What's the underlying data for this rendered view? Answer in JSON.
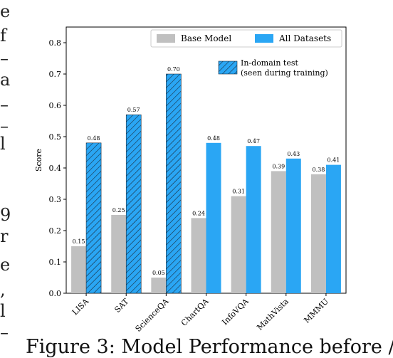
{
  "chart_data": {
    "type": "bar",
    "title": "",
    "xlabel": "",
    "ylabel": "Score",
    "ylim": [
      0,
      0.85
    ],
    "yticks": [
      "0.0",
      "0.1",
      "0.2",
      "0.3",
      "0.4",
      "0.5",
      "0.6",
      "0.7",
      "0.8"
    ],
    "categories": [
      "LISA",
      "SAT",
      "ScienceQA",
      "ChartQA",
      "InfoVQA",
      "MathVista",
      "MMMU"
    ],
    "series": [
      {
        "name": "Base Model",
        "color": "#c0c0c0",
        "values": [
          0.15,
          0.25,
          0.05,
          0.24,
          0.31,
          0.39,
          0.38
        ],
        "labels": [
          "0.15",
          "0.25",
          "0.05",
          "0.24",
          "0.31",
          "0.39",
          "0.38"
        ]
      },
      {
        "name": "All Datasets",
        "color": "#2aa6f4",
        "values": [
          0.48,
          0.57,
          0.7,
          0.48,
          0.47,
          0.43,
          0.41
        ],
        "labels": [
          "0.48",
          "0.57",
          "0.70",
          "0.48",
          "0.47",
          "0.43",
          "0.41"
        ],
        "in_domain": [
          true,
          true,
          true,
          false,
          false,
          false,
          false
        ]
      }
    ],
    "in_domain_legend": [
      "In-domain test",
      "(seen during training)"
    ],
    "legend_position": "top-right",
    "grid": false
  },
  "margin_text": [
    "e",
    "f",
    "–",
    "a",
    "–",
    "–",
    "l",
    "",
    "9",
    "r",
    "e",
    ",",
    "l",
    "–"
  ],
  "caption": "Figure 3: Model Performance before /"
}
